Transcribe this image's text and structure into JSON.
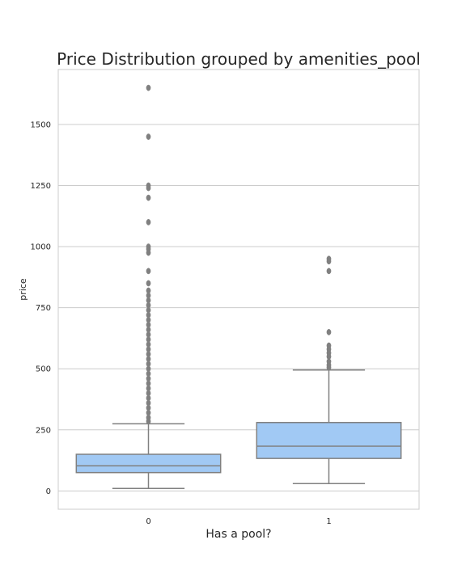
{
  "chart_data": {
    "type": "box",
    "title": "Price Distribution grouped by amenities_pool",
    "xlabel": "Has a pool?",
    "ylabel": "price",
    "ylim": [
      -75,
      1725
    ],
    "yticks": [
      0,
      250,
      500,
      750,
      1000,
      1250,
      1500
    ],
    "grid": true,
    "colors": {
      "box_fill": "#a1c9f4",
      "box_edge": "#808080",
      "grid": "#cccccc",
      "frame": "#cccccc"
    },
    "categories": [
      "0",
      "1"
    ],
    "boxes": [
      {
        "category": "0",
        "whisker_low": 10,
        "q1": 75,
        "median": 103,
        "q3": 150,
        "whisker_high": 275,
        "outliers": [
          1650,
          1450,
          1250,
          1240,
          1200,
          1100,
          1000,
          990,
          975,
          900,
          850,
          820,
          800,
          780,
          760,
          740,
          720,
          700,
          680,
          660,
          640,
          620,
          600,
          580,
          560,
          540,
          520,
          500,
          480,
          460,
          440,
          420,
          400,
          380,
          360,
          340,
          320,
          300,
          285
        ]
      },
      {
        "category": "1",
        "whisker_low": 30,
        "q1": 133,
        "median": 183,
        "q3": 280,
        "whisker_high": 495,
        "outliers": [
          950,
          940,
          900,
          650,
          595,
          580,
          565,
          550,
          530,
          515,
          505
        ]
      }
    ]
  }
}
